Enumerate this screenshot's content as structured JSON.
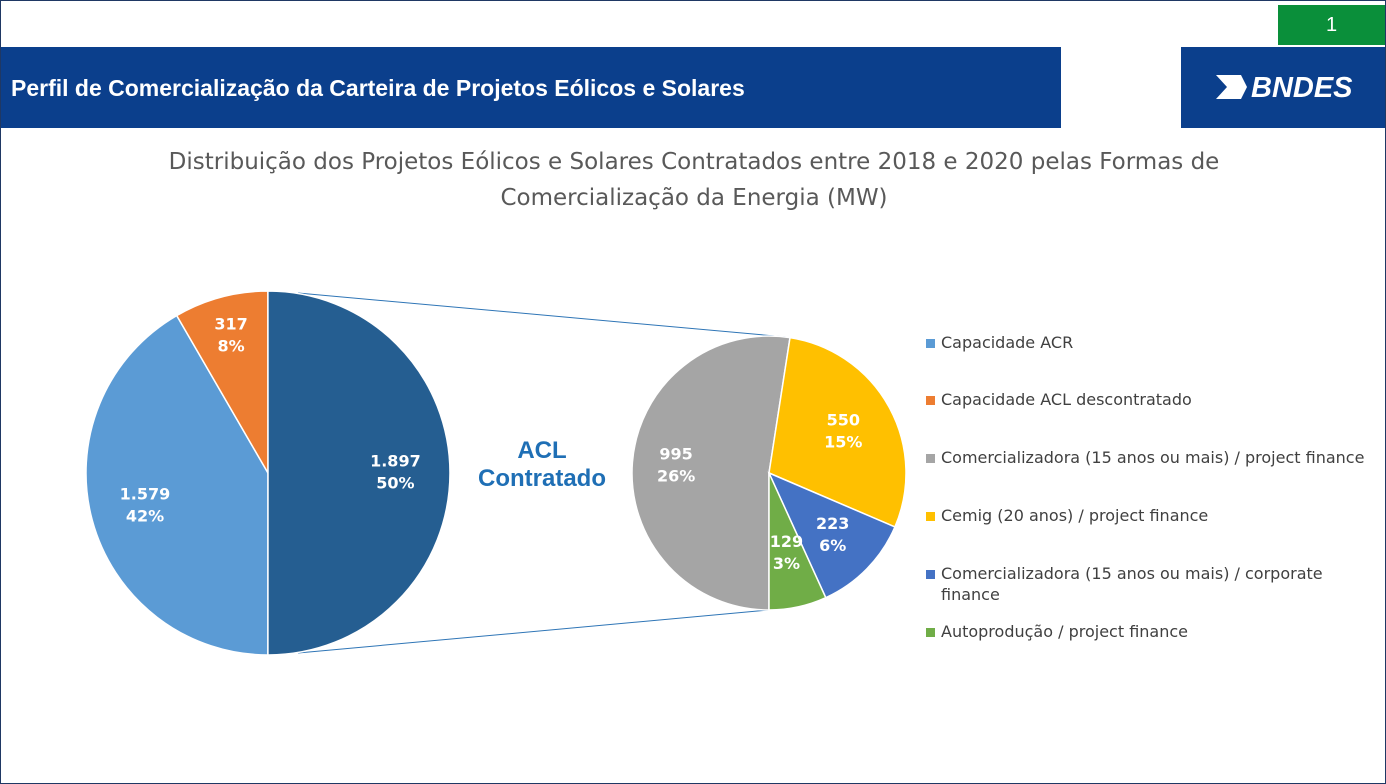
{
  "header": {
    "title": "Perfil de Comercialização da Carteira de Projetos Eólicos e Solares",
    "page_number": "1",
    "logo": "BNDES"
  },
  "chart_data": {
    "type": "pie-of-pie",
    "title": "Distribuição dos Projetos Eólicos e Solares Contratados entre 2018 e 2020 pelas Formas de Comercialização da Energia (MW)",
    "main": {
      "categories": [
        "Capacidade ACR",
        "Capacidade ACL descontratado",
        "ACL Contratado"
      ],
      "values": [
        1579,
        317,
        1897
      ],
      "value_labels": [
        "1.579",
        "317",
        "1.897"
      ],
      "percent_labels": [
        "42%",
        "8%",
        "50%"
      ],
      "colors": [
        "#5b9bd5",
        "#ed7d31",
        "#255e91"
      ]
    },
    "secondary": {
      "categories": [
        "Comercializadora (15 anos ou mais) / project finance",
        "Cemig (20 anos) / project finance",
        "Comercializadora (15 anos ou mais) / corporate finance",
        "Autoprodução / project finance"
      ],
      "values": [
        995,
        550,
        223,
        129
      ],
      "percent_labels": [
        "26%",
        "15%",
        "6%",
        "3%"
      ],
      "colors": [
        "#a5a5a5",
        "#ffc000",
        "#4472c4",
        "#70ad47"
      ]
    }
  }
}
